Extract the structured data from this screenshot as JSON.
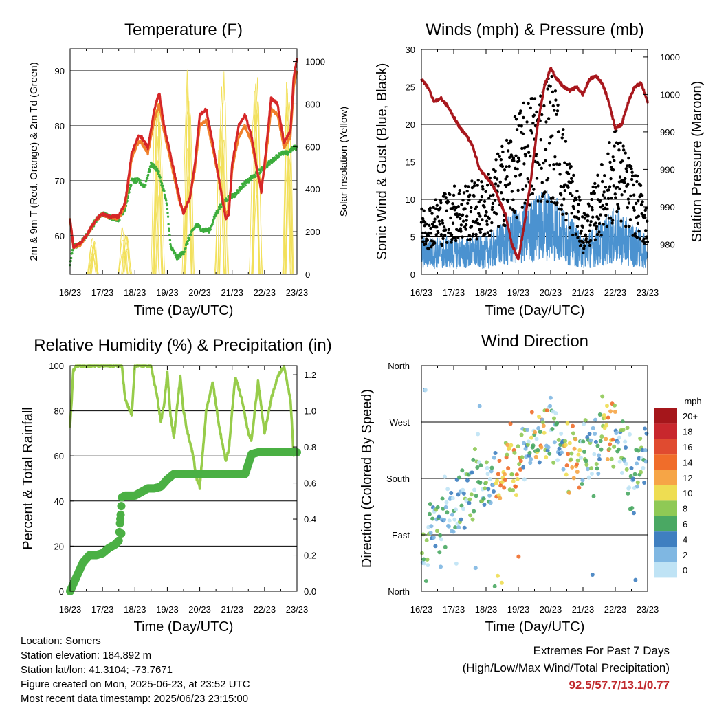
{
  "chart_data": [
    {
      "type": "line",
      "title": "Temperature (F)",
      "xlabel": "Time (Day/UTC)",
      "ylabel": "2m & 9m T (Red, Orange) & 2m Td (Green)",
      "y2label": "Solar Insolation (Yellow)",
      "x_ticks": [
        "16/23",
        "17/23",
        "18/23",
        "19/23",
        "20/23",
        "21/23",
        "22/23",
        "23/23"
      ],
      "ylim": [
        53,
        94
      ],
      "y_ticks": [
        60,
        70,
        80,
        90
      ],
      "y2lim": [
        0,
        1060
      ],
      "y2_ticks": [
        0,
        200,
        400,
        600,
        800,
        1000
      ],
      "grid": "horizontal",
      "colors": {
        "t2m": "#d62728",
        "t9m": "#f07f2a",
        "td": "#3cad3c",
        "solar": "#f2e05a"
      },
      "series": [
        {
          "name": "2m T",
          "x": [
            0,
            0.1,
            0.3,
            0.5,
            0.8,
            1.0,
            1.2,
            1.5,
            1.7,
            1.9,
            2.1,
            2.2,
            2.4,
            2.6,
            2.75,
            2.9,
            3.2,
            3.4,
            3.5,
            3.7,
            3.85,
            4.0,
            4.2,
            4.4,
            4.6,
            4.8,
            4.9,
            5.0,
            5.2,
            5.4,
            5.6,
            5.8,
            5.9,
            6.0,
            6.2,
            6.4,
            6.6,
            6.8,
            6.9,
            7.0
          ],
          "values": [
            63,
            58,
            58.5,
            60,
            63,
            64,
            63.5,
            63.5,
            66,
            75,
            78,
            78,
            76,
            83,
            86,
            80,
            72,
            66,
            64,
            67,
            73,
            82,
            83,
            77,
            70,
            63,
            64,
            73,
            80,
            82,
            78,
            71,
            68,
            73,
            85,
            84,
            77,
            79,
            89,
            92
          ]
        },
        {
          "name": "9m T",
          "x": [
            0,
            0.1,
            0.3,
            0.5,
            0.8,
            1.0,
            1.2,
            1.5,
            1.7,
            1.9,
            2.1,
            2.2,
            2.4,
            2.6,
            2.75,
            2.9,
            3.2,
            3.4,
            3.5,
            3.7,
            3.85,
            4.0,
            4.2,
            4.4,
            4.6,
            4.8,
            4.9,
            5.0,
            5.2,
            5.4,
            5.6,
            5.8,
            5.9,
            6.0,
            6.2,
            6.4,
            6.6,
            6.8,
            6.9,
            7.0
          ],
          "values": [
            63,
            58,
            58.3,
            60,
            62.8,
            64,
            63.3,
            63.2,
            65.5,
            74,
            77,
            77,
            75,
            81,
            84,
            79,
            71,
            65.5,
            64.5,
            67,
            72,
            80,
            81,
            76,
            70,
            64,
            64.5,
            72,
            78,
            80,
            77,
            71,
            69,
            72,
            83,
            82,
            76,
            78,
            87,
            90
          ]
        },
        {
          "name": "2m Td",
          "x": [
            0,
            0.1,
            0.3,
            0.5,
            0.8,
            1.0,
            1.2,
            1.5,
            1.7,
            1.9,
            2.1,
            2.3,
            2.5,
            2.7,
            2.9,
            3.0,
            3.1,
            3.3,
            3.5,
            3.7,
            3.9,
            4.1,
            4.3,
            4.5,
            4.7,
            4.9,
            5.1,
            5.3,
            5.5,
            5.7,
            5.9,
            6.1,
            6.3,
            6.5,
            6.7,
            6.9,
            7.0
          ],
          "values": [
            55,
            58,
            58.5,
            60,
            62.8,
            64,
            63.5,
            63,
            65,
            70,
            70,
            69,
            73,
            72,
            68,
            65,
            58,
            56,
            57,
            60,
            62,
            61,
            61,
            64,
            66,
            67,
            67.5,
            69,
            70,
            71,
            72,
            73,
            74,
            75,
            75,
            76,
            76
          ]
        },
        {
          "name": "Solar",
          "peaks_day": [
            0.7,
            1.7,
            2.7,
            3.7,
            4.7,
            5.7,
            6.7
          ],
          "peaks_value": [
            180,
            230,
            880,
            1010,
            1000,
            1000,
            1010
          ]
        }
      ]
    },
    {
      "type": "scatter",
      "title": "Winds (mph) & Pressure (mb)",
      "xlabel": "Time (Day/UTC)",
      "ylabel": "Sonic Wind & Gust (Blue, Black)",
      "y2label": "Station Pressure (Maroon)",
      "x_ticks": [
        "16/23",
        "17/23",
        "18/23",
        "19/23",
        "20/23",
        "21/23",
        "22/23",
        "23/23"
      ],
      "ylim": [
        0,
        30
      ],
      "y_ticks": [
        0,
        5,
        10,
        15,
        20,
        25,
        30
      ],
      "y2_ticks_labels": [
        "980",
        "990",
        "990",
        "990",
        "1000",
        "1000"
      ],
      "y2_ticks_pos_wind": [
        4,
        9,
        14,
        19,
        24,
        29
      ],
      "grid": "horizontal",
      "colors": {
        "wind": "#4b92d0",
        "gust": "#000000",
        "pressure": "#a8171d"
      },
      "series": [
        {
          "name": "Pressure (on wind axis)",
          "x": [
            0,
            0.2,
            0.4,
            0.6,
            0.8,
            1.0,
            1.2,
            1.4,
            1.6,
            1.8,
            2.0,
            2.2,
            2.4,
            2.6,
            2.8,
            3.0,
            3.2,
            3.4,
            3.6,
            3.8,
            4.0,
            4.2,
            4.4,
            4.6,
            4.8,
            5.0,
            5.2,
            5.4,
            5.6,
            5.8,
            6.0,
            6.2,
            6.4,
            6.6,
            6.8,
            7.0
          ],
          "values": [
            26,
            25,
            23,
            23.5,
            22.5,
            21,
            19.5,
            18.5,
            17,
            14,
            13,
            12,
            10,
            8,
            4,
            2,
            7,
            13,
            20,
            25,
            27.5,
            26,
            25,
            24.5,
            25,
            24,
            26,
            26.5,
            25.5,
            23,
            19.5,
            20,
            23,
            25,
            25.5,
            23
          ]
        },
        {
          "name": "Wind",
          "envelope_day": [
            0,
            1,
            2,
            3,
            4,
            5,
            6,
            7
          ],
          "envelope_max": [
            5,
            5,
            5,
            9,
            12,
            5,
            9,
            5
          ]
        },
        {
          "name": "Gust",
          "envelope_day": [
            0,
            1,
            2,
            3,
            4,
            5,
            6,
            7
          ],
          "envelope_max": [
            9,
            12,
            13,
            22,
            28,
            8,
            20,
            10
          ]
        }
      ]
    },
    {
      "type": "line",
      "title": "Relative Humidity (%) & Precipitation (in)",
      "xlabel": "Time (Day/UTC)",
      "ylabel": "Percent & Total Rainfall",
      "x_ticks": [
        "16/23",
        "17/23",
        "18/23",
        "19/23",
        "20/23",
        "21/23",
        "22/23",
        "23/23"
      ],
      "ylim": [
        0,
        100
      ],
      "y_ticks": [
        0,
        20,
        40,
        60,
        80,
        100
      ],
      "y2lim": [
        0,
        1.25
      ],
      "y2_ticks": [
        "0.0",
        "0.2",
        "0.4",
        "0.6",
        "0.8",
        "1.0",
        "1.2"
      ],
      "grid": "horizontal",
      "colors": {
        "rh": "#97cc4a",
        "precip": "#4bb044"
      },
      "series": [
        {
          "name": "RH",
          "x": [
            0,
            0.1,
            0.2,
            0.4,
            0.6,
            0.8,
            1.0,
            1.2,
            1.4,
            1.6,
            1.7,
            1.9,
            2.0,
            2.1,
            2.3,
            2.5,
            2.7,
            2.8,
            2.9,
            3.0,
            3.1,
            3.2,
            3.4,
            3.5,
            3.6,
            3.8,
            3.9,
            4.0,
            4.2,
            4.4,
            4.6,
            4.8,
            4.9,
            5.0,
            5.1,
            5.3,
            5.5,
            5.6,
            5.8,
            6.0,
            6.2,
            6.4,
            6.6,
            6.8,
            6.9,
            7.0
          ],
          "values": [
            73,
            98,
            100,
            100,
            100,
            100,
            100,
            100,
            100,
            100,
            85,
            78,
            100,
            100,
            100,
            100,
            85,
            75,
            83,
            97,
            78,
            68,
            95,
            80,
            72,
            60,
            50,
            46,
            80,
            93,
            73,
            58,
            63,
            80,
            95,
            85,
            70,
            67,
            93,
            70,
            85,
            95,
            100,
            85,
            60,
            62
          ]
        },
        {
          "name": "Total Precip",
          "x": [
            0,
            0.1,
            0.2,
            0.3,
            0.4,
            0.5,
            0.6,
            0.8,
            1.0,
            1.2,
            1.4,
            1.5,
            1.6,
            1.7,
            2.0,
            2.2,
            2.4,
            2.6,
            2.8,
            3.0,
            3.2,
            3.5,
            3.8,
            4.2,
            4.6,
            5.0,
            5.4,
            5.6,
            5.8,
            6.2,
            6.6,
            7.0
          ],
          "values": [
            0,
            0.04,
            0.08,
            0.12,
            0.16,
            0.18,
            0.2,
            0.2,
            0.21,
            0.24,
            0.26,
            0.28,
            0.52,
            0.53,
            0.53,
            0.55,
            0.57,
            0.57,
            0.58,
            0.62,
            0.65,
            0.65,
            0.65,
            0.65,
            0.65,
            0.65,
            0.65,
            0.76,
            0.77,
            0.77,
            0.77,
            0.77
          ]
        }
      ]
    },
    {
      "type": "scatter",
      "title": "Wind Direction",
      "xlabel": "Time (Day/UTC)",
      "ylabel": "Direction (Colored By Speed)",
      "x_ticks": [
        "16/23",
        "17/23",
        "18/23",
        "19/23",
        "20/23",
        "21/23",
        "22/23",
        "23/23"
      ],
      "y_ticks": [
        "North",
        "East",
        "South",
        "West",
        "North"
      ],
      "ylim_deg": [
        0,
        360
      ],
      "grid": "horizontal",
      "colorbar": {
        "title": "mph",
        "labels": [
          "20+",
          "18",
          "16",
          "14",
          "12",
          "10",
          "8",
          "6",
          "4",
          "2",
          "0"
        ],
        "colors": [
          "#a5161b",
          "#c8272d",
          "#e04b30",
          "#f06d2a",
          "#f6a546",
          "#eedd52",
          "#8fc955",
          "#4aa863",
          "#3f7fc0",
          "#7fb7e2",
          "#bfe3f5"
        ]
      },
      "direction_envelope": {
        "day": [
          0,
          0.5,
          1,
          1.5,
          2,
          2.5,
          3,
          3.5,
          4,
          4.5,
          5,
          5.5,
          6,
          6.5,
          7
        ],
        "center_deg": [
          50,
          100,
          135,
          160,
          180,
          195,
          215,
          245,
          270,
          200,
          210,
          225,
          260,
          180,
          210
        ]
      }
    }
  ],
  "footer": {
    "location": "Location: Somers",
    "elevation": "Station elevation: 184.892 m",
    "latlon": "Station lat/lon: 41.3104; -73.7671",
    "created": "Figure created on Mon, 2025-06-23, at 23:52 UTC",
    "recent": "Most recent data timestamp: 2025/06/23 23:15:00"
  },
  "extremes": {
    "line1": "Extremes For Past 7 Days",
    "line2": "(High/Low/Max Wind/Total Precipitation)",
    "values": "92.5/57.7/13.1/0.77",
    "values_color": "#c0282c"
  }
}
